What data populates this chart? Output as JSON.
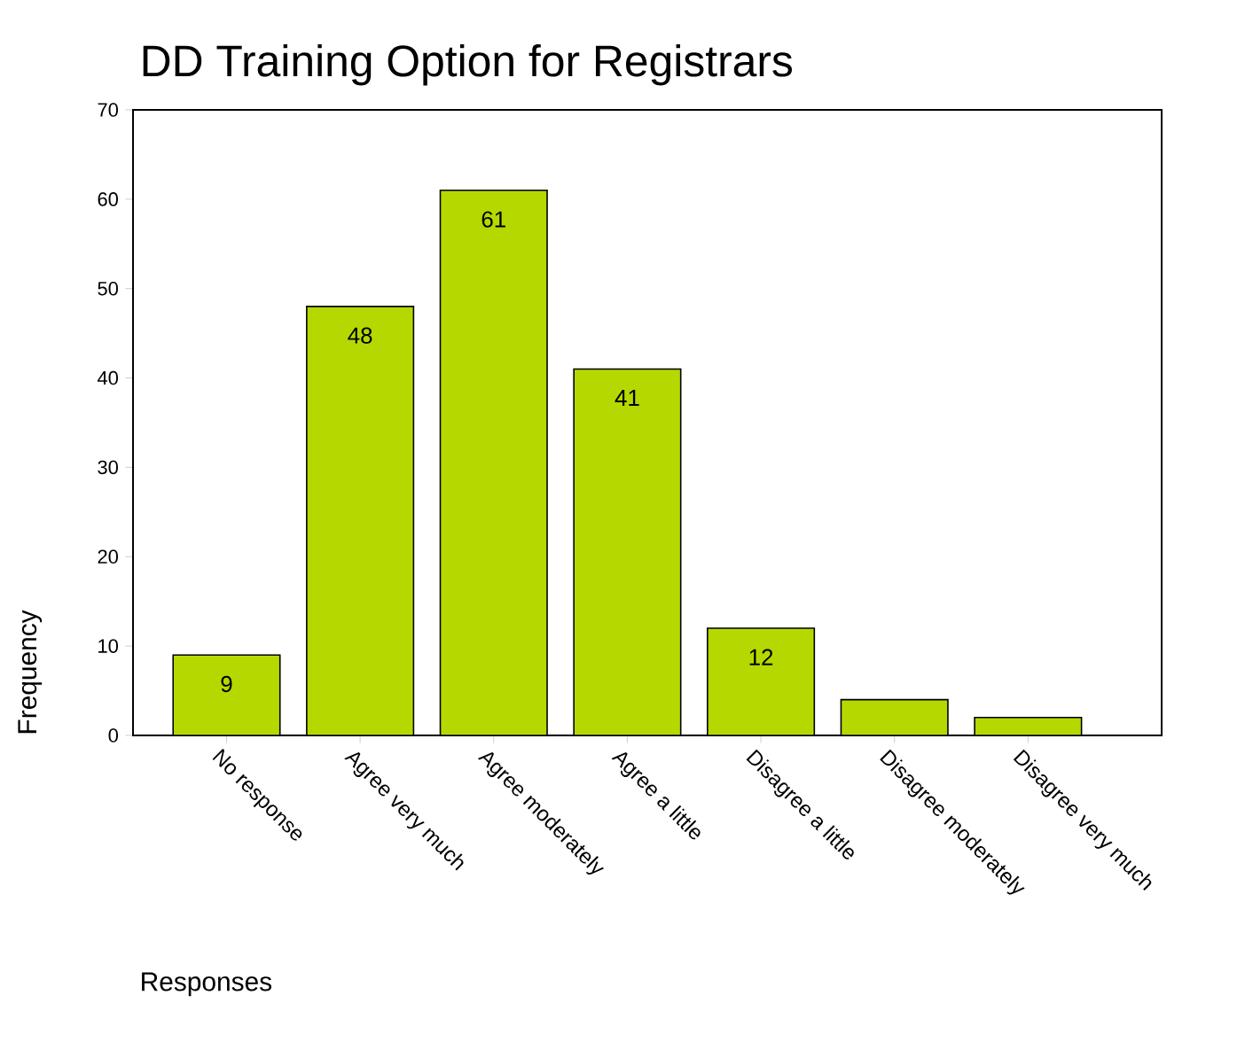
{
  "chart_data": {
    "type": "bar",
    "title": "DD Training Option for Registrars",
    "xlabel": "Responses",
    "ylabel": "Frequency",
    "categories": [
      "No response",
      "Agree very much",
      "Agree moderately",
      "Agree a little",
      "Disagree a little",
      "Disagree moderately",
      "Disagree very much"
    ],
    "values": [
      9,
      48,
      61,
      41,
      12,
      4,
      2
    ],
    "value_labels": [
      "9",
      "48",
      "61",
      "41",
      "12",
      null,
      null
    ],
    "color": "#b5d900",
    "ylim": [
      0,
      70
    ],
    "yticks": [
      0,
      10,
      20,
      30,
      40,
      50,
      60,
      70
    ],
    "grid": false
  }
}
